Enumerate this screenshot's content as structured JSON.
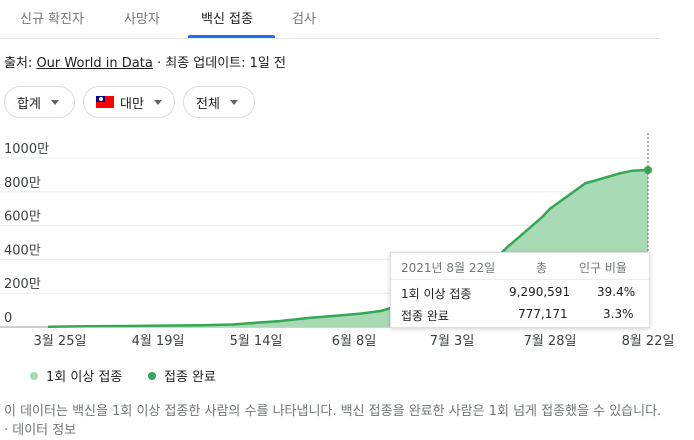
{
  "tabs": [
    "신규 확진자",
    "사망자",
    "백신 접종",
    "검사"
  ],
  "source": {
    "prefix": "출처:",
    "name": "Our World in Data",
    "updated": "· 최종 업데이트: 1일 전"
  },
  "filters": {
    "aggregate": "합계",
    "country": "대만",
    "scope": "전체"
  },
  "tooltip": {
    "date": "2021년 8월 22일",
    "col_total": "총",
    "col_pct": "인구 비율",
    "rows": [
      {
        "label": "1회 이상 접종",
        "total": "9,290,591",
        "pct": "39.4%"
      },
      {
        "label": "접종 완료",
        "total": "777,171",
        "pct": "3.3%"
      }
    ]
  },
  "legend": {
    "dose1": "1회 이상 접종",
    "full": "접종 완료"
  },
  "description": "이 데이터는 백신을 1회 이상 접종한 사람의 수를 나타냅니다. 백신 접종을 완료한 사람은 1회 넘게 접종했을 수 있습니다. · 데이터 정보",
  "colors": {
    "accent": "#1a73e8",
    "area_fill": "#a8dab5",
    "line": "#34a853",
    "dose1_dot": "#a8dab5",
    "full_dot": "#34a853"
  },
  "chart_data": {
    "type": "area",
    "ylim": [
      0,
      10000000
    ],
    "y_ticks": [
      {
        "value": 0,
        "label": "0"
      },
      {
        "value": 2000000,
        "label": "200만"
      },
      {
        "value": 4000000,
        "label": "400만"
      },
      {
        "value": 6000000,
        "label": "600만"
      },
      {
        "value": 8000000,
        "label": "800만"
      },
      {
        "value": 10000000,
        "label": "1000만"
      }
    ],
    "x_ticks": [
      "3월 25일",
      "4월 19일",
      "5월 14일",
      "6월 8일",
      "7월 3일",
      "7월 28일",
      "8월 22일"
    ],
    "x": [
      "2021-03-22",
      "2021-04-01",
      "2021-04-10",
      "2021-04-20",
      "2021-04-30",
      "2021-05-08",
      "2021-05-14",
      "2021-05-20",
      "2021-05-28",
      "2021-06-05",
      "2021-06-10",
      "2021-06-15",
      "2021-06-20",
      "2021-06-25",
      "2021-06-30",
      "2021-07-03",
      "2021-07-07",
      "2021-07-11",
      "2021-07-14",
      "2021-07-17",
      "2021-07-20",
      "2021-07-23",
      "2021-07-26",
      "2021-07-28",
      "2021-07-31",
      "2021-08-03",
      "2021-08-06",
      "2021-08-09",
      "2021-08-12",
      "2021-08-15",
      "2021-08-18",
      "2021-08-22"
    ],
    "series": [
      {
        "name": "1회 이상 접종",
        "values": [
          20000,
          40000,
          60000,
          80000,
          100000,
          150000,
          250000,
          350000,
          550000,
          700000,
          800000,
          950000,
          1300000,
          1800000,
          2300000,
          2700000,
          3000000,
          3400000,
          4000000,
          4700000,
          5300000,
          5900000,
          6500000,
          7000000,
          7500000,
          8000000,
          8500000,
          8700000,
          8900000,
          9100000,
          9250000,
          9290591
        ]
      }
    ]
  }
}
